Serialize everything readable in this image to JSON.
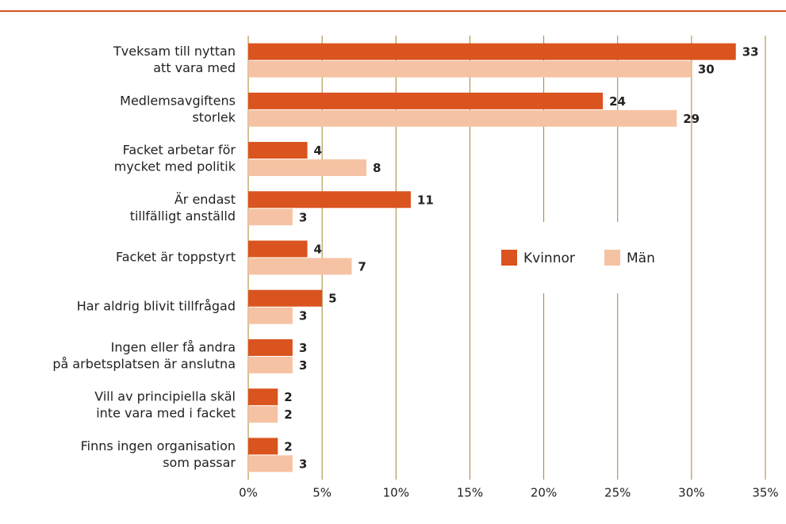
{
  "chart_data": {
    "type": "hbar",
    "categories": [
      [
        "Tveksam till nyttan",
        "att vara med"
      ],
      [
        "Medlemsavgiftens",
        "storlek"
      ],
      [
        "Facket arbetar för",
        "mycket med politik"
      ],
      [
        "Är endast",
        "tillfälligt anställd"
      ],
      [
        "Facket är toppstyrt"
      ],
      [
        "Har aldrig blivit tillfrågad"
      ],
      [
        "Ingen eller få andra",
        "på arbetsplatsen är anslutna"
      ],
      [
        "Vill av principiella skäl",
        "inte vara med i facket"
      ],
      [
        "Finns ingen organisation",
        "som passar"
      ]
    ],
    "series": [
      {
        "name": "Kvinnor",
        "color": "#d9541e",
        "values": [
          33,
          24,
          4,
          11,
          4,
          5,
          3,
          2,
          2
        ]
      },
      {
        "name": "Män",
        "color": "#f5c3a4",
        "values": [
          30,
          29,
          8,
          3,
          7,
          3,
          3,
          2,
          3
        ]
      }
    ],
    "xlim": [
      0,
      35
    ],
    "xticks": [
      {
        "value": 0,
        "label": "0%"
      },
      {
        "value": 5,
        "label": "5%"
      },
      {
        "value": 10,
        "label": "10%"
      },
      {
        "value": 15,
        "label": "15%"
      },
      {
        "value": 20,
        "label": "20%"
      },
      {
        "value": 25,
        "label": "25%"
      },
      {
        "value": 30,
        "label": "30%"
      },
      {
        "value": 35,
        "label": "35%"
      }
    ],
    "grid": true,
    "legend": "right"
  }
}
